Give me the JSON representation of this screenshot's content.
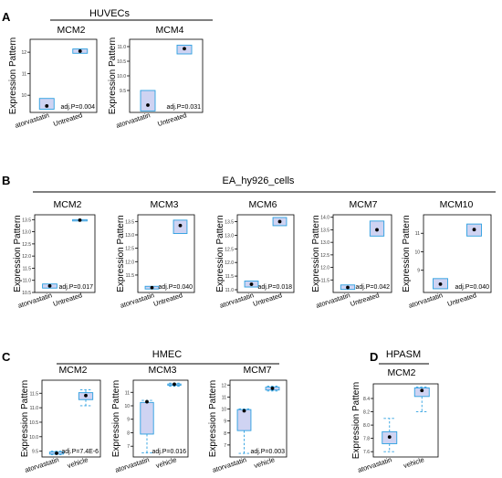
{
  "colors": {
    "box_fill": "#cfd3f2",
    "box_stroke": "#2b9fe0",
    "whisker": "#2b9fe0",
    "mean_dot": "#000000",
    "axis": "#000000"
  },
  "panels": [
    {
      "letter": "A",
      "group": "HUVECs"
    },
    {
      "letter": "B",
      "group": "EA_hy926_cells"
    },
    {
      "letter": "C",
      "group": "HMEC"
    },
    {
      "letter": "D",
      "group": "HPASM"
    }
  ],
  "chart_data": [
    {
      "type": "box",
      "panel": "A",
      "title": "MCM2",
      "ylabel": "Expression Pattern",
      "categories": [
        "atorvastatin",
        "Untreated"
      ],
      "yticks": [
        "10",
        "11",
        "12"
      ],
      "ylim": [
        9.2,
        12.6
      ],
      "annotation": "adj.P=0.004",
      "boxes": [
        {
          "q1": 9.35,
          "q3": 9.85,
          "mean": 9.5
        },
        {
          "q1": 11.95,
          "q3": 12.15,
          "mean": 12.05
        }
      ]
    },
    {
      "type": "box",
      "panel": "A",
      "title": "MCM4",
      "ylabel": "Expression Pattern",
      "categories": [
        "atorvastatin",
        "Untreated"
      ],
      "yticks": [
        "9.5",
        "10.0",
        "10.5",
        "11.0"
      ],
      "ylim": [
        8.75,
        11.25
      ],
      "annotation": "adj.P=0.031",
      "boxes": [
        {
          "q1": 8.8,
          "q3": 9.5,
          "mean": 9.0
        },
        {
          "q1": 10.75,
          "q3": 11.05,
          "mean": 10.93
        }
      ]
    },
    {
      "type": "box",
      "panel": "B",
      "title": "MCM2",
      "ylabel": "Expression Pattern",
      "categories": [
        "atorvastatin",
        "Untreated"
      ],
      "yticks": [
        "10.5",
        "11.0",
        "11.5",
        "12.0",
        "12.5",
        "13.0",
        "13.5"
      ],
      "ylim": [
        10.5,
        13.7
      ],
      "annotation": "adj.P=0.017",
      "boxes": [
        {
          "q1": 10.68,
          "q3": 10.85,
          "mean": 10.77
        },
        {
          "q1": 13.47,
          "q3": 13.5,
          "mean": 13.48
        }
      ]
    },
    {
      "type": "box",
      "panel": "B",
      "title": "MCM3",
      "ylabel": "Expression Pattern",
      "categories": [
        "atorvastatin",
        "Untreated"
      ],
      "yticks": [
        "11.5",
        "12.0",
        "12.5",
        "13.0",
        "13.5"
      ],
      "ylim": [
        10.85,
        13.75
      ],
      "annotation": "adj.P=0.040",
      "boxes": [
        {
          "q1": 10.98,
          "q3": 11.08,
          "mean": 11.03
        },
        {
          "q1": 13.05,
          "q3": 13.55,
          "mean": 13.35
        }
      ]
    },
    {
      "type": "box",
      "panel": "B",
      "title": "MCM6",
      "ylabel": "Expression Pattern",
      "categories": [
        "atorvastatin",
        "Untreated"
      ],
      "yticks": [
        "11.0",
        "11.5",
        "12.0",
        "12.5",
        "13.0",
        "13.5"
      ],
      "ylim": [
        10.9,
        13.75
      ],
      "annotation": "adj.P=0.018",
      "boxes": [
        {
          "q1": 11.1,
          "q3": 11.32,
          "mean": 11.2
        },
        {
          "q1": 13.35,
          "q3": 13.65,
          "mean": 13.5
        }
      ]
    },
    {
      "type": "box",
      "panel": "B",
      "title": "MCM7",
      "ylabel": "Expression Pattern",
      "categories": [
        "atorvastatin",
        "Untreated"
      ],
      "yticks": [
        "11.5",
        "12.0",
        "12.5",
        "13.0",
        "13.5",
        "14.0"
      ],
      "ylim": [
        11.0,
        14.1
      ],
      "annotation": "adj.P=0.042",
      "boxes": [
        {
          "q1": 11.12,
          "q3": 11.3,
          "mean": 11.2
        },
        {
          "q1": 13.25,
          "q3": 13.85,
          "mean": 13.5
        }
      ]
    },
    {
      "type": "box",
      "panel": "B",
      "title": "MCM10",
      "ylabel": "Expression Pattern",
      "categories": [
        "atorvastatin",
        "Untreated"
      ],
      "yticks": [
        "9",
        "10",
        "11"
      ],
      "ylim": [
        7.8,
        12.0
      ],
      "annotation": "adj.P=0.040",
      "boxes": [
        {
          "q1": 8.0,
          "q3": 8.55,
          "mean": 8.25
        },
        {
          "q1": 10.85,
          "q3": 11.5,
          "mean": 11.2
        }
      ]
    },
    {
      "type": "box",
      "panel": "C",
      "title": "MCM2",
      "ylabel": "Expression Pattern",
      "categories": [
        "atorvastatin",
        "vehicle"
      ],
      "yticks": [
        "9.5",
        "10.0",
        "10.5",
        "11.0",
        "11.5"
      ],
      "ylim": [
        9.3,
        11.95
      ],
      "annotation": "adj.P=7.4E-6",
      "boxes": [
        {
          "lo": 9.38,
          "q1": 9.4,
          "q3": 9.47,
          "hi": 9.5,
          "mean": 9.43
        },
        {
          "lo": 11.07,
          "q1": 11.28,
          "q3": 11.52,
          "hi": 11.62,
          "mean": 11.42
        }
      ]
    },
    {
      "type": "box",
      "panel": "C",
      "title": "MCM3",
      "ylabel": "Expression Pattern",
      "categories": [
        "atorvastatin",
        "vehicle"
      ],
      "yticks": [
        "7",
        "8",
        "9",
        "10",
        "11"
      ],
      "ylim": [
        6.2,
        11.9
      ],
      "annotation": "adj.P=0.016",
      "boxes": [
        {
          "lo": 6.5,
          "q1": 7.9,
          "q3": 10.25,
          "hi": 10.4,
          "mean": 10.3
        },
        {
          "lo": 11.45,
          "q1": 11.52,
          "q3": 11.62,
          "hi": 11.68,
          "mean": 11.6
        }
      ]
    },
    {
      "type": "box",
      "panel": "C",
      "title": "MCM7",
      "ylabel": "Expression Pattern",
      "categories": [
        "atorvastatin",
        "vehicle"
      ],
      "yticks": [
        "7",
        "8",
        "9",
        "10",
        "11",
        "12"
      ],
      "ylim": [
        6.0,
        12.4
      ],
      "annotation": "adj.P=0.003",
      "boxes": [
        {
          "lo": 6.3,
          "q1": 8.2,
          "q3": 9.95,
          "hi": 10.0,
          "mean": 9.85
        },
        {
          "lo": 11.5,
          "q1": 11.58,
          "q3": 11.82,
          "hi": 11.9,
          "mean": 11.72
        }
      ]
    },
    {
      "type": "box",
      "panel": "D",
      "title": "MCM2",
      "ylabel": "Expression Pattern",
      "categories": [
        "atorvastatin",
        "vehicle"
      ],
      "yticks": [
        "7.6",
        "7.8",
        "8.0",
        "8.2",
        "8.4"
      ],
      "ylim": [
        7.52,
        8.62
      ],
      "annotation": "",
      "boxes": [
        {
          "lo": 7.6,
          "q1": 7.72,
          "q3": 7.9,
          "hi": 8.1,
          "mean": 7.82
        },
        {
          "lo": 8.2,
          "q1": 8.43,
          "q3": 8.56,
          "hi": 8.57,
          "mean": 8.52
        }
      ]
    }
  ]
}
